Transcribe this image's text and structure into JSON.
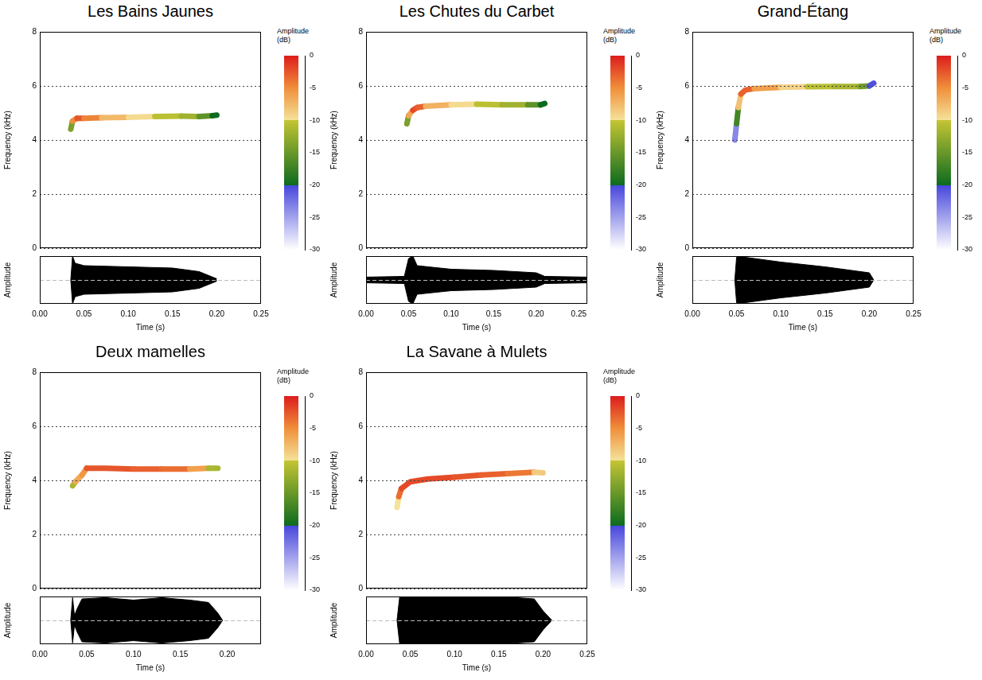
{
  "chart_data": [
    {
      "type": "spectrogram",
      "title": "Les Bains Jaunes",
      "x_label": "Time (s)",
      "xlim": [
        0,
        0.25
      ],
      "xticks": [
        {
          "value": 0,
          "label": "0.00"
        },
        0.05,
        {
          "value": 0.1,
          "label": "0.10"
        },
        0.15,
        {
          "value": 0.2,
          "label": "0.20"
        },
        0.25
      ],
      "spectrogram": {
        "y_label": "Frequency (kHz)",
        "ylim": [
          0,
          8
        ],
        "yticks": [
          0,
          2,
          4,
          6,
          8
        ],
        "grid": true,
        "tick_labels": "y",
        "x": [
          0.035,
          0.037,
          0.042,
          0.05,
          0.07,
          0.1,
          0.13,
          0.16,
          0.18,
          0.195,
          0.2
        ],
        "values": [
          4.4,
          4.7,
          4.8,
          4.8,
          4.82,
          4.84,
          4.87,
          4.88,
          4.87,
          4.9,
          4.92
        ],
        "amplitude": [
          -20,
          -8,
          -2,
          -3,
          -6,
          -9,
          -10,
          -11,
          -13,
          -18,
          -22
        ]
      },
      "color_bar": {
        "label": "Amplitude (dB)",
        "range": [
          -30,
          0
        ],
        "ticks": [
          0,
          -5,
          -10,
          -15,
          -20,
          -25,
          -30
        ]
      },
      "waveform": {
        "y_label": "Amplitude",
        "ylim": [
          -1,
          1
        ],
        "grid": false,
        "tick_labels": "x",
        "x": [
          0.035,
          0.037,
          0.04,
          0.05,
          0.1,
          0.15,
          0.18,
          0.2
        ],
        "values": [
          0,
          1,
          0.7,
          0.6,
          0.55,
          0.5,
          0.35,
          0.05
        ]
      }
    },
    {
      "type": "spectrogram",
      "title": "Les Chutes du Carbet",
      "x_label": "Time (s)",
      "xlim": [
        0,
        0.26
      ],
      "xticks": [
        {
          "value": 0,
          "label": "0.00"
        },
        0.05,
        {
          "value": 0.1,
          "label": "0.10"
        },
        0.15,
        {
          "value": 0.2,
          "label": "0.20"
        },
        0.25
      ],
      "spectrogram": {
        "y_label": "Frequency (kHz)",
        "ylim": [
          0,
          8
        ],
        "yticks": [
          0,
          2,
          4,
          6,
          8
        ],
        "grid": true,
        "tick_labels": "y",
        "x": [
          0.048,
          0.05,
          0.055,
          0.06,
          0.07,
          0.1,
          0.13,
          0.16,
          0.19,
          0.205,
          0.21
        ],
        "values": [
          4.6,
          4.9,
          5.1,
          5.2,
          5.25,
          5.3,
          5.32,
          5.3,
          5.3,
          5.3,
          5.35
        ],
        "amplitude": [
          -18,
          -10,
          -3,
          -1,
          -5,
          -9,
          -10,
          -11,
          -13,
          -18,
          -22
        ]
      },
      "color_bar": {
        "label": "Amplitude (dB)",
        "range": [
          -30,
          0
        ],
        "ticks": [
          0,
          -5,
          -10,
          -15,
          -20,
          -25,
          -30
        ]
      },
      "waveform": {
        "y_label": "Amplitude",
        "ylim": [
          -1,
          1
        ],
        "grid": false,
        "tick_labels": "x",
        "x": [
          0,
          0.045,
          0.05,
          0.055,
          0.06,
          0.1,
          0.15,
          0.2,
          0.21,
          0.26
        ],
        "values": [
          0.12,
          0.15,
          0.9,
          1,
          0.6,
          0.45,
          0.4,
          0.3,
          0.15,
          0.12
        ]
      }
    },
    {
      "type": "spectrogram",
      "title": "Grand-Étang",
      "x_label": "Time (s)",
      "xlim": [
        0,
        0.25
      ],
      "xticks": [
        {
          "value": 0,
          "label": "0.00"
        },
        0.05,
        {
          "value": 0.1,
          "label": "0.10"
        },
        0.15,
        {
          "value": 0.2,
          "label": "0.20"
        },
        0.25
      ],
      "spectrogram": {
        "y_label": "Frequency (kHz)",
        "ylim": [
          0,
          8
        ],
        "yticks": [
          0,
          2,
          4,
          6,
          8
        ],
        "grid": true,
        "tick_labels": "y",
        "x": [
          0.048,
          0.05,
          0.052,
          0.055,
          0.06,
          0.07,
          0.1,
          0.13,
          0.16,
          0.19,
          0.2,
          0.205
        ],
        "values": [
          4.0,
          4.6,
          5.2,
          5.7,
          5.85,
          5.9,
          5.95,
          5.97,
          5.98,
          5.98,
          6.0,
          6.1
        ],
        "amplitude": [
          -25,
          -22,
          -12,
          -4,
          -2,
          -4,
          -8,
          -10,
          -11,
          -12,
          -17,
          -24
        ]
      },
      "color_bar": {
        "label": "Amplitude (dB)",
        "range": [
          -30,
          0
        ],
        "ticks": [
          0,
          -5,
          -10,
          -15,
          -20,
          -25,
          -30
        ]
      },
      "waveform": {
        "y_label": "Amplitude",
        "ylim": [
          -1,
          1
        ],
        "grid": false,
        "tick_labels": "x",
        "x": [
          0.048,
          0.05,
          0.055,
          0.06,
          0.1,
          0.15,
          0.2,
          0.205
        ],
        "values": [
          0,
          0.95,
          1,
          0.95,
          0.75,
          0.55,
          0.3,
          0
        ]
      }
    },
    {
      "type": "spectrogram",
      "title": "Deux mamelles",
      "x_label": "Time (s)",
      "xlim": [
        0,
        0.236
      ],
      "xticks": [
        {
          "value": 0,
          "label": "0.00"
        },
        0.05,
        {
          "value": 0.1,
          "label": "0.10"
        },
        0.15,
        {
          "value": 0.2,
          "label": "0.20"
        }
      ],
      "spectrogram": {
        "y_label": "Frequency (kHz)",
        "ylim": [
          0,
          8
        ],
        "yticks": [
          0,
          2,
          4,
          6,
          8
        ],
        "grid": true,
        "tick_labels": "y",
        "x": [
          0.035,
          0.038,
          0.045,
          0.05,
          0.07,
          0.1,
          0.13,
          0.16,
          0.18,
          0.19
        ],
        "values": [
          3.8,
          3.95,
          4.2,
          4.45,
          4.45,
          4.42,
          4.42,
          4.42,
          4.45,
          4.45
        ],
        "amplitude": [
          -18,
          -5,
          -8,
          -3,
          -2,
          -3,
          -3,
          -4,
          -8,
          -15
        ]
      },
      "color_bar": {
        "label": "Amplitude (dB)",
        "range": [
          -30,
          0
        ],
        "ticks": [
          0,
          -5,
          -10,
          -15,
          -20,
          -25,
          -30
        ]
      },
      "waveform": {
        "y_label": "Amplitude",
        "ylim": [
          -1,
          1
        ],
        "grid": false,
        "tick_labels": "x",
        "x": [
          0.033,
          0.035,
          0.037,
          0.04,
          0.045,
          0.07,
          0.1,
          0.13,
          0.16,
          0.18,
          0.19,
          0.195
        ],
        "values": [
          0,
          0.95,
          0.2,
          0.5,
          0.9,
          0.95,
          0.85,
          0.95,
          0.85,
          0.75,
          0.3,
          0
        ]
      }
    },
    {
      "type": "spectrogram",
      "title": "La Savane à Mulets",
      "x_label": "Time (s)",
      "xlim": [
        0,
        0.25
      ],
      "xticks": [
        {
          "value": 0,
          "label": "0.00"
        },
        0.05,
        {
          "value": 0.1,
          "label": "0.10"
        },
        0.15,
        {
          "value": 0.2,
          "label": "0.20"
        },
        0.25
      ],
      "spectrogram": {
        "y_label": "Frequency (kHz)",
        "ylim": [
          0,
          8
        ],
        "yticks": [
          0,
          2,
          4,
          6,
          8
        ],
        "grid": true,
        "tick_labels": "y",
        "x": [
          0.035,
          0.037,
          0.04,
          0.05,
          0.07,
          0.1,
          0.13,
          0.16,
          0.19,
          0.2
        ],
        "values": [
          3.0,
          3.4,
          3.7,
          3.95,
          4.05,
          4.12,
          4.2,
          4.25,
          4.3,
          4.28
        ],
        "amplitude": [
          -15,
          -5,
          -2,
          -2,
          -2,
          -2,
          -3,
          -3,
          -5,
          -12
        ]
      },
      "color_bar": {
        "label": "Amplitude (dB)",
        "range": [
          -30,
          0
        ],
        "ticks": [
          0,
          -5,
          -10,
          -15,
          -20,
          -25,
          -30
        ]
      },
      "waveform": {
        "y_label": "Amplitude",
        "ylim": [
          -1,
          1
        ],
        "grid": false,
        "tick_labels": "x",
        "x": [
          0.035,
          0.038,
          0.05,
          0.1,
          0.15,
          0.19,
          0.2,
          0.21
        ],
        "values": [
          0,
          1,
          1,
          1,
          1,
          0.9,
          0.4,
          0
        ]
      }
    }
  ]
}
